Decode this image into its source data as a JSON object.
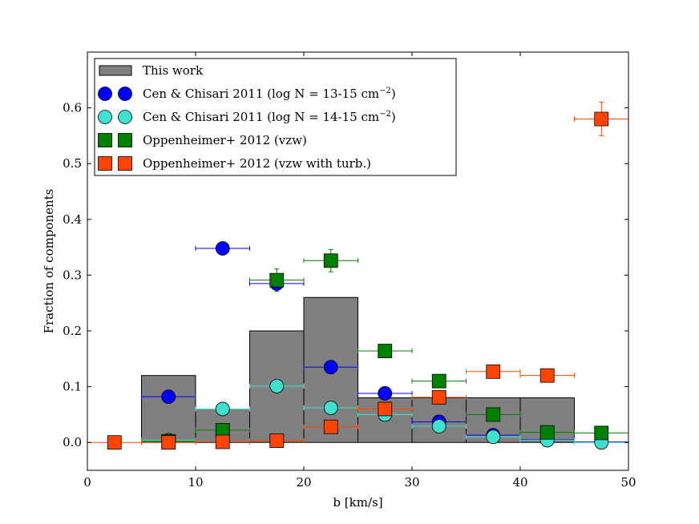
{
  "chart_data": {
    "type": "bar",
    "xlabel": "b [km/s]",
    "ylabel": "Fraction of components",
    "xlim": [
      0,
      50
    ],
    "ylim": [
      -0.05,
      0.7
    ],
    "xticks": [
      "0",
      "10",
      "20",
      "30",
      "40",
      "50"
    ],
    "yticks": [
      "0.0",
      "0.1",
      "0.2",
      "0.3",
      "0.4",
      "0.5",
      "0.6"
    ],
    "legend_position": "top-left",
    "histogram": {
      "name": "This work",
      "color": "#808080",
      "bin_edges": [
        5,
        10,
        15,
        20,
        25,
        30,
        35,
        40,
        45
      ],
      "values": [
        0.12,
        0.06,
        0.2,
        0.26,
        0.08,
        0.08,
        0.08,
        0.08
      ]
    },
    "series": [
      {
        "name": "Cen & Chisari 2011 (log N = 13-15 cm",
        "name_sup": "−2",
        "name_end": ")",
        "marker": "circle",
        "color": "#0000ff",
        "line_color": "#0000ff",
        "points": [
          {
            "x": 7.5,
            "y": 0.082,
            "xerr": 2.5
          },
          {
            "x": 12.5,
            "y": 0.348,
            "xerr": 2.5
          },
          {
            "x": 17.5,
            "y": 0.285,
            "xerr": 2.5
          },
          {
            "x": 22.5,
            "y": 0.135,
            "xerr": 2.5
          },
          {
            "x": 27.5,
            "y": 0.088,
            "xerr": 2.5
          },
          {
            "x": 32.5,
            "y": 0.037,
            "xerr": 2.5
          },
          {
            "x": 37.5,
            "y": 0.013,
            "xerr": 2.5
          },
          {
            "x": 42.5,
            "y": 0.005,
            "xerr": 2.5
          },
          {
            "x": 47.5,
            "y": 0.001,
            "xerr": 2.5
          }
        ]
      },
      {
        "name": "Cen & Chisari 2011 (log N = 14-15 cm",
        "name_sup": "−2",
        "name_end": ")",
        "marker": "circle",
        "color": "#40e0d0",
        "line_color": "#40e0d0",
        "points": [
          {
            "x": 7.5,
            "y": 0.004,
            "xerr": 2.5
          },
          {
            "x": 12.5,
            "y": 0.06,
            "xerr": 2.5
          },
          {
            "x": 17.5,
            "y": 0.101,
            "xerr": 2.5
          },
          {
            "x": 22.5,
            "y": 0.062,
            "xerr": 2.5
          },
          {
            "x": 27.5,
            "y": 0.05,
            "xerr": 2.5
          },
          {
            "x": 32.5,
            "y": 0.029,
            "xerr": 2.5
          },
          {
            "x": 37.5,
            "y": 0.01,
            "xerr": 2.5
          },
          {
            "x": 42.5,
            "y": 0.004,
            "xerr": 2.5
          },
          {
            "x": 47.5,
            "y": 0.0,
            "xerr": 2.5
          }
        ]
      },
      {
        "name": "Oppenheimer+ 2012 (vzw)",
        "marker": "square",
        "color": "#008000",
        "line_color": "#008000",
        "points": [
          {
            "x": 7.5,
            "y": 0.002,
            "xerr": 2.5
          },
          {
            "x": 12.5,
            "y": 0.022,
            "xerr": 2.5
          },
          {
            "x": 17.5,
            "y": 0.291,
            "xerr": 2.5,
            "yerr": 0.02
          },
          {
            "x": 22.5,
            "y": 0.326,
            "xerr": 2.5,
            "yerr": 0.02
          },
          {
            "x": 27.5,
            "y": 0.164,
            "xerr": 2.5
          },
          {
            "x": 32.5,
            "y": 0.11,
            "xerr": 2.5
          },
          {
            "x": 37.5,
            "y": 0.05,
            "xerr": 2.5
          },
          {
            "x": 42.5,
            "y": 0.018,
            "xerr": 2.5
          },
          {
            "x": 47.5,
            "y": 0.017,
            "xerr": 2.5
          }
        ]
      },
      {
        "name": "Oppenheimer+ 2012 (vzw with turb.)",
        "marker": "square",
        "color": "#ff4500",
        "line_color": "#ff4500",
        "points": [
          {
            "x": 2.5,
            "y": 0.0,
            "xerr": 2.5
          },
          {
            "x": 7.5,
            "y": 0.0,
            "xerr": 2.5
          },
          {
            "x": 12.5,
            "y": 0.001,
            "xerr": 2.5
          },
          {
            "x": 17.5,
            "y": 0.003,
            "xerr": 2.5
          },
          {
            "x": 22.5,
            "y": 0.028,
            "xerr": 2.5
          },
          {
            "x": 27.5,
            "y": 0.06,
            "xerr": 2.5
          },
          {
            "x": 32.5,
            "y": 0.081,
            "xerr": 2.5
          },
          {
            "x": 37.5,
            "y": 0.127,
            "xerr": 2.5
          },
          {
            "x": 42.5,
            "y": 0.12,
            "xerr": 2.5
          },
          {
            "x": 47.5,
            "y": 0.58,
            "xerr": 2.5,
            "yerr": 0.03
          }
        ]
      }
    ]
  }
}
